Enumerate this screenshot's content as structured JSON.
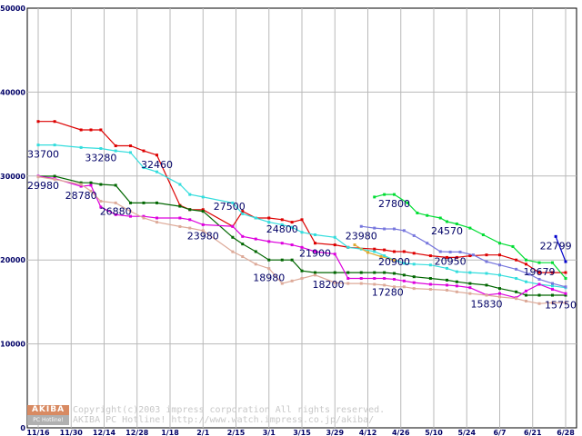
{
  "chart_data": {
    "type": "line",
    "ylim": [
      0,
      50000
    ],
    "y_ticks": [
      "0",
      "10000",
      "20000",
      "30000",
      "40000",
      "50000"
    ],
    "x_ticks": [
      "11/16",
      "11/30",
      "12/14",
      "12/28",
      "1/18",
      "2/1",
      "2/15",
      "3/1",
      "3/15",
      "3/29",
      "4/12",
      "4/26",
      "5/10",
      "5/24",
      "6/7",
      "6/21",
      "6/28"
    ],
    "grid": true,
    "legend": "none",
    "series": [
      {
        "color": "#dd0000",
        "x": [
          0,
          0.5,
          1.3,
          1.6,
          1.9,
          2.35,
          2.8,
          3.2,
          3.6,
          4.3,
          4.6,
          5.0,
          5.9,
          6.2,
          6.6,
          7.0,
          7.4,
          7.7,
          8.0,
          8.4,
          9.0,
          9.4,
          10.2,
          10.5,
          10.8,
          11.1,
          11.4,
          11.9,
          12.4,
          12.7,
          13.1,
          13.6,
          14.0,
          14.5,
          14.8,
          15.2,
          15.6,
          16.0
        ],
        "y": [
          36500,
          36500,
          35500,
          35500,
          35500,
          33600,
          33600,
          33000,
          32500,
          26500,
          26000,
          26000,
          24000,
          25800,
          25000,
          25000,
          24800,
          24500,
          24800,
          22000,
          21800,
          21500,
          21300,
          21200,
          21000,
          21000,
          20800,
          20500,
          20300,
          20300,
          20500,
          20600,
          20600,
          20000,
          19500,
          18500,
          18500,
          18500
        ]
      },
      {
        "color": "#33dddd",
        "x": [
          0,
          0.5,
          1.3,
          1.9,
          2.35,
          2.8,
          3.2,
          3.6,
          4.3,
          4.6,
          5.0,
          5.9,
          6.2,
          6.6,
          7.0,
          7.4,
          7.7,
          8.0,
          8.4,
          9.0,
          9.4,
          9.8,
          10.2,
          10.5,
          10.8,
          11.1,
          11.4,
          11.9,
          12.4,
          12.7,
          13.1,
          13.6,
          14.0,
          14.5,
          14.8,
          15.2,
          15.6,
          16.0
        ],
        "y": [
          33700,
          33700,
          33400,
          33280,
          33000,
          32800,
          31000,
          30500,
          29000,
          27800,
          27500,
          26800,
          25500,
          25000,
          24500,
          24200,
          23900,
          23300,
          23000,
          22700,
          21500,
          21300,
          21000,
          20500,
          20000,
          19600,
          19500,
          19400,
          19000,
          18600,
          18500,
          18400,
          18200,
          17800,
          17400,
          17100,
          16900,
          16700
        ]
      },
      {
        "color": "#006600",
        "x": [
          0,
          0.5,
          1.3,
          1.6,
          1.9,
          2.35,
          2.8,
          3.2,
          3.6,
          4.3,
          4.6,
          5.0,
          5.9,
          6.2,
          6.6,
          7.0,
          7.4,
          7.7,
          8.0,
          8.4,
          9.0,
          9.4,
          9.8,
          10.2,
          10.5,
          10.8,
          11.1,
          11.4,
          11.9,
          12.4,
          12.7,
          13.1,
          13.6,
          14.0,
          14.5,
          14.8,
          15.2,
          15.6,
          16.0
        ],
        "y": [
          29980,
          29980,
          29200,
          29200,
          29000,
          28900,
          26800,
          26800,
          26800,
          26400,
          26000,
          25800,
          22700,
          21900,
          21000,
          20000,
          20000,
          20000,
          18700,
          18500,
          18500,
          18500,
          18500,
          18500,
          18500,
          18400,
          18200,
          18000,
          17800,
          17600,
          17400,
          17200,
          17000,
          16600,
          16200,
          15800,
          15800,
          15800,
          15800
        ]
      },
      {
        "color": "#dd00dd",
        "x": [
          0,
          0.5,
          1.3,
          1.6,
          1.9,
          2.35,
          2.8,
          3.2,
          3.6,
          4.3,
          4.6,
          5.0,
          5.9,
          6.2,
          6.6,
          7.0,
          7.4,
          7.7,
          8.0,
          8.4,
          9.0,
          9.4,
          9.8,
          10.2,
          10.5,
          10.8,
          11.1,
          11.4,
          11.9,
          12.4,
          12.7,
          13.1,
          13.6,
          14.0,
          14.5,
          14.8,
          15.2,
          15.6,
          16.0
        ],
        "y": [
          29980,
          29700,
          28780,
          28900,
          26300,
          25400,
          25200,
          25200,
          25000,
          25000,
          24800,
          24200,
          24000,
          22800,
          22500,
          22200,
          22000,
          21800,
          21500,
          21000,
          20700,
          17800,
          17800,
          17800,
          17800,
          17700,
          17500,
          17300,
          17100,
          17000,
          16900,
          16700,
          15830,
          16000,
          15500,
          16300,
          17100,
          16500,
          16000
        ]
      },
      {
        "color": "#ddaa99",
        "x": [
          0,
          0.5,
          1.3,
          1.6,
          1.9,
          2.35,
          2.8,
          3.2,
          3.6,
          4.3,
          4.6,
          5.0,
          5.9,
          6.2,
          6.6,
          7.0,
          7.4,
          7.7,
          8.0,
          8.4,
          9.0,
          9.4,
          9.8,
          10.2,
          10.5,
          10.8,
          11.1,
          11.4,
          11.9,
          12.4,
          12.7,
          13.1,
          13.6,
          14.0,
          14.5,
          14.8,
          15.2,
          15.6,
          16.0
        ],
        "y": [
          29900,
          29600,
          29000,
          28200,
          27000,
          26800,
          25800,
          25000,
          24500,
          23980,
          23800,
          23500,
          20980,
          20400,
          19500,
          18980,
          17200,
          17500,
          17800,
          18200,
          17300,
          17200,
          17200,
          17100,
          17000,
          16800,
          16800,
          16600,
          16500,
          16400,
          16200,
          16000,
          15800,
          15600,
          15400,
          15100,
          14800,
          14900,
          14900
        ]
      },
      {
        "color": "#00dd33",
        "x": [
          10.2,
          10.5,
          10.8,
          11.2,
          11.5,
          11.8,
          12.2,
          12.4,
          12.7,
          13.1,
          13.5,
          14.0,
          14.4,
          14.8,
          15.2,
          15.6,
          16.0
        ],
        "y": [
          27500,
          27800,
          27800,
          26800,
          25600,
          25300,
          25000,
          24570,
          24300,
          23800,
          23000,
          22000,
          21600,
          20000,
          19679,
          19679,
          17800
        ]
      },
      {
        "color": "#7777dd",
        "x": [
          9.8,
          10.2,
          10.5,
          10.8,
          11.1,
          11.4,
          11.8,
          12.2,
          12.5,
          12.8,
          13.2,
          13.6,
          14.0,
          14.5,
          14.9,
          15.2,
          15.6,
          16.0
        ],
        "y": [
          24000,
          23800,
          23700,
          23700,
          23500,
          22900,
          22000,
          21000,
          20950,
          20950,
          20600,
          19800,
          19400,
          18900,
          18300,
          17700,
          17200,
          16800
        ]
      },
      {
        "color": "#ddaa33",
        "x": [
          9.6,
          10.0,
          10.4,
          10.8
        ],
        "y": [
          21800,
          20900,
          20400,
          20000
        ]
      },
      {
        "color": "#0000cc",
        "x": [
          15.7,
          16.0
        ],
        "y": [
          22799,
          19800
        ]
      }
    ],
    "data_labels": [
      {
        "text": "33700",
        "x": 0,
        "y": 33700
      },
      {
        "text": "29980",
        "x": 0,
        "y": 29980
      },
      {
        "text": "33280",
        "x": 1.9,
        "y": 33280
      },
      {
        "text": "28780",
        "x": 1.3,
        "y": 28780
      },
      {
        "text": "26880",
        "x": 2.35,
        "y": 26880
      },
      {
        "text": "32460",
        "x": 3.6,
        "y": 32460
      },
      {
        "text": "27500",
        "x": 5.8,
        "y": 27500
      },
      {
        "text": "23980",
        "x": 5.0,
        "y": 23980
      },
      {
        "text": "24800",
        "x": 7.4,
        "y": 24800
      },
      {
        "text": "18980",
        "x": 7.0,
        "y": 18980
      },
      {
        "text": "21900",
        "x": 8.4,
        "y": 21900
      },
      {
        "text": "18200",
        "x": 8.8,
        "y": 18200
      },
      {
        "text": "23980",
        "x": 9.8,
        "y": 23980
      },
      {
        "text": "27800",
        "x": 10.8,
        "y": 27800
      },
      {
        "text": "20900",
        "x": 10.8,
        "y": 20900
      },
      {
        "text": "17280",
        "x": 10.6,
        "y": 17280
      },
      {
        "text": "24570",
        "x": 12.4,
        "y": 24570
      },
      {
        "text": "20950",
        "x": 12.5,
        "y": 20950
      },
      {
        "text": "15830",
        "x": 13.6,
        "y": 15830
      },
      {
        "text": "22799",
        "x": 15.7,
        "y": 22799
      },
      {
        "text": "19679",
        "x": 15.2,
        "y": 19679
      },
      {
        "text": "15750",
        "x": 16.0,
        "y": 15750
      }
    ]
  },
  "watermark": {
    "logo_top": "AKIBA",
    "logo_bottom": "PC Hotline!",
    "line1": "Copyright(c)2003 impress corporation All rights reserved.",
    "line2": "AKIBA PC Hotline!  http://www.watch.impress.co.jp/akiba/"
  }
}
